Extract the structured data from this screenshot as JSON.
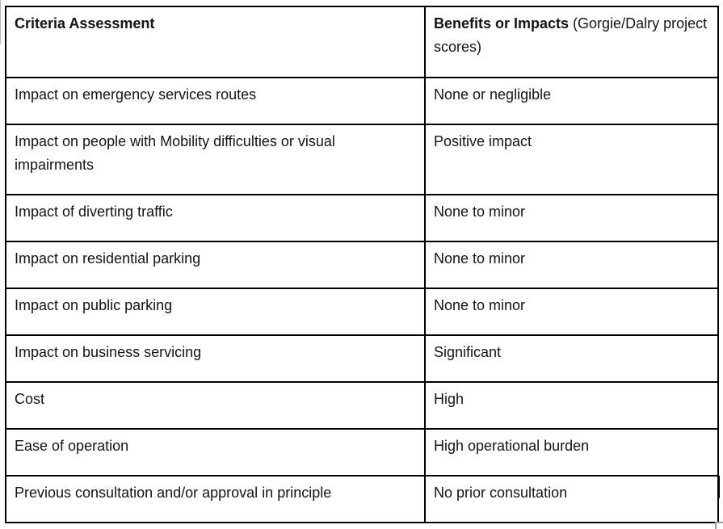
{
  "colors": {
    "border": "#000000",
    "background": "#ffffff",
    "text": "#141414",
    "artifact_gray": "#9e9e9e"
  },
  "table": {
    "header": {
      "criteria": "Criteria Assessment",
      "benefits_bold": "Benefits or Impacts",
      "benefits_normal": " (Gorgie/Dalry project scores)"
    },
    "rows": [
      {
        "criteria": "Impact on emergency services routes",
        "benefit": "None or negligible"
      },
      {
        "criteria": "Impact on people with Mobility difficulties or visual impairments",
        "benefit": "Positive impact"
      },
      {
        "criteria": "Impact of diverting traffic",
        "benefit": "None to minor"
      },
      {
        "criteria": "Impact on residential parking",
        "benefit": "None to minor"
      },
      {
        "criteria": "Impact on public parking",
        "benefit": "None to minor"
      },
      {
        "criteria": "Impact on business servicing",
        "benefit": "Significant"
      },
      {
        "criteria": "Cost",
        "benefit": "High"
      },
      {
        "criteria": "Ease of operation",
        "benefit": "High operational burden"
      },
      {
        "criteria": "Previous consultation and/or approval in principle",
        "benefit": "No prior consultation"
      }
    ]
  }
}
